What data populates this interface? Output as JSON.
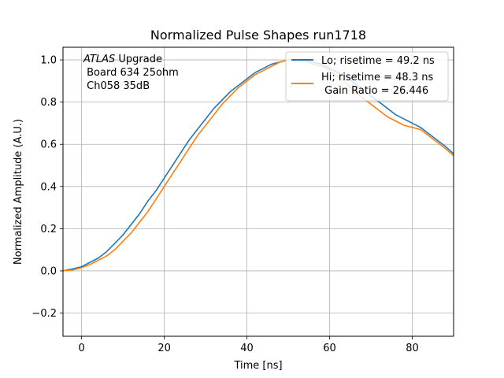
{
  "chart_data": {
    "type": "line",
    "title": "Normalized Pulse Shapes run1718",
    "xlabel": "Time [ns]",
    "ylabel": "Normalized Amplitude (A.U.)",
    "xlim": [
      -4.5,
      90
    ],
    "ylim": [
      -0.31,
      1.06
    ],
    "xticks": [
      0,
      20,
      40,
      60,
      80
    ],
    "yticks": [
      -0.2,
      0.0,
      0.2,
      0.4,
      0.6,
      0.8,
      1.0
    ],
    "xtick_labels": [
      "0",
      "20",
      "40",
      "60",
      "80"
    ],
    "ytick_labels": [
      "−0.2",
      "0.0",
      "0.2",
      "0.4",
      "0.6",
      "0.8",
      "1.0"
    ],
    "grid": true,
    "legend_position": "top-right",
    "annotation": {
      "italic_part": "ATLAS",
      "rest_first_line": " Upgrade",
      "line2": " Board 634 25ohm",
      "line3": " Ch058 35dB"
    },
    "series": [
      {
        "name": "Lo; risetime = 49.2 ns",
        "color": "#1f77b4",
        "x": [
          -4.5,
          -2,
          0,
          2,
          4,
          6,
          8,
          10,
          12,
          14,
          16,
          18,
          20,
          22,
          24,
          26,
          28,
          30,
          32,
          34,
          36,
          38,
          40,
          42,
          44,
          46,
          48,
          50,
          52,
          54,
          56,
          58,
          60,
          62,
          64,
          66,
          68,
          70,
          72,
          74,
          76,
          78,
          80,
          82,
          84,
          86,
          88,
          90
        ],
        "y": [
          0.0,
          0.01,
          0.02,
          0.04,
          0.06,
          0.09,
          0.13,
          0.17,
          0.22,
          0.27,
          0.33,
          0.38,
          0.44,
          0.5,
          0.56,
          0.62,
          0.67,
          0.72,
          0.77,
          0.81,
          0.85,
          0.88,
          0.91,
          0.94,
          0.96,
          0.98,
          0.99,
          1.0,
          1.0,
          0.995,
          0.99,
          0.98,
          0.96,
          0.94,
          0.92,
          0.89,
          0.86,
          0.83,
          0.8,
          0.77,
          0.74,
          0.72,
          0.7,
          0.68,
          0.65,
          0.62,
          0.59,
          0.555
        ]
      },
      {
        "name": "Hi; risetime = 48.3 ns",
        "name_line2": " Gain Ratio = 26.446",
        "color": "#ff7f0e",
        "x": [
          -4.5,
          -2,
          0,
          2,
          4,
          6,
          8,
          10,
          12,
          14,
          16,
          18,
          20,
          22,
          24,
          26,
          28,
          30,
          32,
          34,
          36,
          38,
          40,
          42,
          44,
          46,
          48,
          50,
          52,
          54,
          56,
          58,
          60,
          62,
          64,
          66,
          68,
          70,
          72,
          74,
          76,
          78,
          80,
          82,
          84,
          86,
          88,
          90
        ],
        "y": [
          0.0,
          0.005,
          0.015,
          0.03,
          0.05,
          0.07,
          0.1,
          0.14,
          0.18,
          0.23,
          0.28,
          0.34,
          0.4,
          0.46,
          0.52,
          0.58,
          0.64,
          0.69,
          0.74,
          0.79,
          0.83,
          0.87,
          0.9,
          0.93,
          0.95,
          0.97,
          0.99,
          1.0,
          1.0,
          0.995,
          0.98,
          0.97,
          0.95,
          0.92,
          0.89,
          0.85,
          0.82,
          0.79,
          0.76,
          0.73,
          0.71,
          0.69,
          0.68,
          0.67,
          0.64,
          0.61,
          0.58,
          0.545
        ]
      }
    ]
  }
}
